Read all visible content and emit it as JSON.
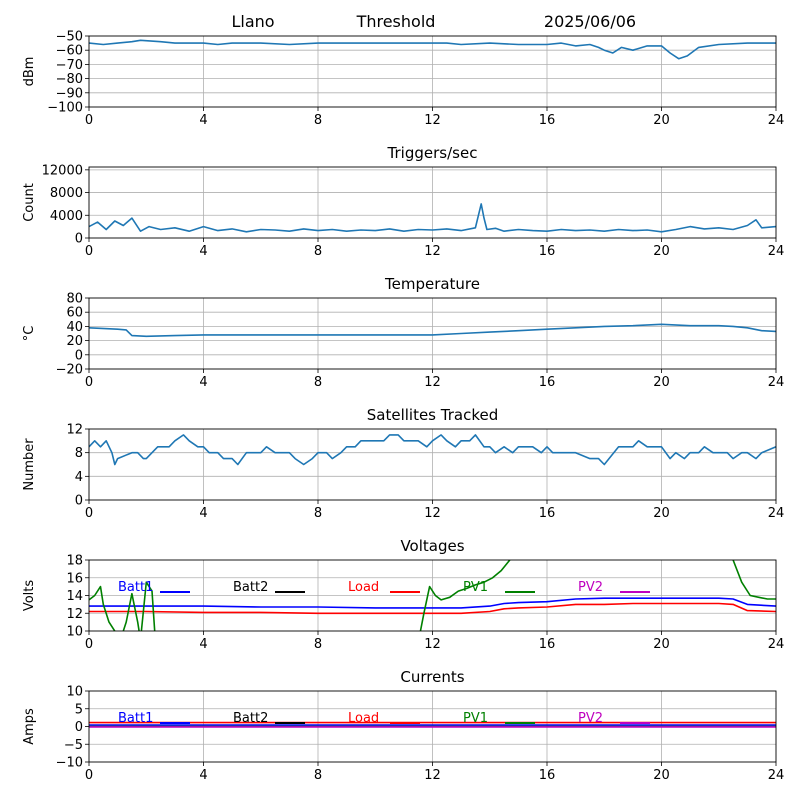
{
  "header": {
    "station": "Llano",
    "mode": "Threshold",
    "date": "2025/06/06"
  },
  "chart_data": [
    {
      "type": "line",
      "title": "",
      "ylabel": "dBm",
      "xlim": [
        0,
        24
      ],
      "ylim": [
        -100,
        -50
      ],
      "xticks": [
        0,
        4,
        8,
        12,
        16,
        20,
        24
      ],
      "yticks": [
        -100,
        -90,
        -80,
        -70,
        -60,
        -50
      ],
      "grid": true,
      "series": [
        {
          "color": "#1f77b4",
          "x": [
            0,
            0.5,
            1,
            1.5,
            1.8,
            2.5,
            3,
            4,
            4.5,
            5,
            6,
            7,
            8,
            9,
            10,
            11,
            12,
            12.5,
            13,
            14,
            15,
            16,
            16.5,
            17,
            17.5,
            17.8,
            18,
            18.3,
            18.6,
            19,
            19.5,
            20,
            20.3,
            20.6,
            20.9,
            21.3,
            22,
            23,
            24
          ],
          "y": [
            -55,
            -56,
            -55,
            -54,
            -53,
            -54,
            -55,
            -55,
            -56,
            -55,
            -55,
            -56,
            -55,
            -55,
            -55,
            -55,
            -55,
            -55,
            -56,
            -55,
            -56,
            -56,
            -55,
            -57,
            -56,
            -58,
            -60,
            -62,
            -58,
            -60,
            -57,
            -57,
            -62,
            -66,
            -64,
            -58,
            -56,
            -55,
            -55
          ]
        }
      ]
    },
    {
      "type": "line",
      "title": "Triggers/sec",
      "ylabel": "Count",
      "xlim": [
        0,
        24
      ],
      "ylim": [
        0,
        12500
      ],
      "xticks": [
        0,
        4,
        8,
        12,
        16,
        20,
        24
      ],
      "yticks": [
        0,
        4000,
        8000,
        12000
      ],
      "grid": true,
      "series": [
        {
          "color": "#1f77b4",
          "x": [
            0,
            0.3,
            0.6,
            0.9,
            1.2,
            1.5,
            1.8,
            2.1,
            2.5,
            3,
            3.5,
            4,
            4.5,
            5,
            5.5,
            6,
            6.5,
            7,
            7.5,
            8,
            8.5,
            9,
            9.5,
            10,
            10.5,
            11,
            11.5,
            12,
            12.5,
            13,
            13.5,
            13.7,
            13.8,
            13.9,
            14.2,
            14.5,
            15,
            15.5,
            16,
            16.5,
            17,
            17.5,
            18,
            18.5,
            19,
            19.5,
            20,
            20.5,
            21,
            21.5,
            22,
            22.5,
            23,
            23.3,
            23.5,
            24
          ],
          "y": [
            2000,
            2800,
            1500,
            3000,
            2200,
            3500,
            1200,
            2000,
            1500,
            1800,
            1200,
            2000,
            1300,
            1600,
            1100,
            1500,
            1400,
            1200,
            1600,
            1300,
            1500,
            1200,
            1400,
            1300,
            1600,
            1200,
            1500,
            1400,
            1600,
            1300,
            1800,
            6000,
            3500,
            1500,
            1700,
            1200,
            1500,
            1300,
            1200,
            1500,
            1300,
            1400,
            1200,
            1500,
            1300,
            1400,
            1100,
            1500,
            2000,
            1600,
            1800,
            1500,
            2200,
            3200,
            1800,
            2000
          ]
        }
      ]
    },
    {
      "type": "line",
      "title": "Temperature",
      "ylabel": "°C",
      "xlim": [
        0,
        24
      ],
      "ylim": [
        -20,
        80
      ],
      "xticks": [
        0,
        4,
        8,
        12,
        16,
        20,
        24
      ],
      "yticks": [
        -20,
        0,
        20,
        40,
        60,
        80
      ],
      "grid": true,
      "series": [
        {
          "color": "#1f77b4",
          "x": [
            0,
            1,
            1.3,
            1.5,
            2,
            3,
            4,
            5,
            6,
            7,
            8,
            9,
            10,
            11,
            12,
            13,
            14,
            15,
            16,
            17,
            18,
            19,
            20,
            21,
            22,
            22.5,
            23,
            23.5,
            24
          ],
          "y": [
            38,
            36,
            35,
            27,
            26,
            27,
            28,
            28,
            28,
            28,
            28,
            28,
            28,
            28,
            28,
            30,
            32,
            34,
            36,
            38,
            40,
            41,
            43,
            41,
            41,
            40,
            38,
            34,
            33
          ]
        }
      ]
    },
    {
      "type": "line",
      "title": "Satellites Tracked",
      "ylabel": "Number",
      "xlim": [
        0,
        24
      ],
      "ylim": [
        0,
        12
      ],
      "xticks": [
        0,
        4,
        8,
        12,
        16,
        20,
        24
      ],
      "yticks": [
        0,
        4,
        8,
        12
      ],
      "grid": true,
      "series": [
        {
          "color": "#1f77b4",
          "x": [
            0,
            0.2,
            0.4,
            0.6,
            0.8,
            0.9,
            1,
            1.5,
            1.7,
            1.9,
            2,
            2.4,
            2.8,
            3,
            3.3,
            3.5,
            3.8,
            4,
            4.2,
            4.5,
            4.7,
            5,
            5.2,
            5.5,
            5.8,
            6,
            6.2,
            6.5,
            7,
            7.2,
            7.5,
            7.8,
            8,
            8.3,
            8.5,
            8.8,
            9,
            9.3,
            9.5,
            9.8,
            10,
            10.3,
            10.5,
            10.8,
            11,
            11.3,
            11.5,
            11.8,
            12,
            12.3,
            12.5,
            12.8,
            13,
            13.3,
            13.5,
            13.8,
            14,
            14.2,
            14.5,
            14.8,
            15,
            15.5,
            15.8,
            16,
            16.2,
            16.5,
            17,
            17.5,
            17.8,
            18,
            18.5,
            19,
            19.2,
            19.5,
            20,
            20.3,
            20.5,
            20.8,
            21,
            21.3,
            21.5,
            21.8,
            22,
            22.3,
            22.5,
            22.8,
            23,
            23.3,
            23.5,
            24
          ],
          "y": [
            9,
            10,
            9,
            10,
            8,
            6,
            7,
            8,
            8,
            7,
            7,
            9,
            9,
            10,
            11,
            10,
            9,
            9,
            8,
            8,
            7,
            7,
            6,
            8,
            8,
            8,
            9,
            8,
            8,
            7,
            6,
            7,
            8,
            8,
            7,
            8,
            9,
            9,
            10,
            10,
            10,
            10,
            11,
            11,
            10,
            10,
            10,
            9,
            10,
            11,
            10,
            9,
            10,
            10,
            11,
            9,
            9,
            8,
            9,
            8,
            9,
            9,
            8,
            9,
            8,
            8,
            8,
            7,
            7,
            6,
            9,
            9,
            10,
            9,
            9,
            7,
            8,
            7,
            8,
            8,
            9,
            8,
            8,
            8,
            7,
            8,
            8,
            7,
            8,
            9
          ]
        }
      ]
    },
    {
      "type": "line",
      "title": "Voltages",
      "ylabel": "Volts",
      "xlim": [
        0,
        24
      ],
      "ylim": [
        10,
        18
      ],
      "xticks": [
        0,
        4,
        8,
        12,
        16,
        20,
        24
      ],
      "yticks": [
        10,
        12,
        14,
        16,
        18
      ],
      "grid": true,
      "legend_placement": "upper-center",
      "series": [
        {
          "name": "Batt1",
          "color": "#0000ff",
          "x": [
            0,
            2,
            4,
            6,
            8,
            10,
            12,
            13,
            14,
            14.5,
            15,
            16,
            17,
            18,
            19,
            20,
            21,
            22,
            22.5,
            23,
            24
          ],
          "y": [
            12.8,
            12.8,
            12.8,
            12.7,
            12.7,
            12.6,
            12.6,
            12.6,
            12.8,
            13.1,
            13.2,
            13.3,
            13.6,
            13.7,
            13.7,
            13.7,
            13.7,
            13.7,
            13.6,
            13.0,
            12.8
          ]
        },
        {
          "name": "Batt2",
          "color": "#000000",
          "x": [],
          "y": []
        },
        {
          "name": "Load",
          "color": "#ff0000",
          "x": [
            0,
            2,
            4,
            6,
            8,
            10,
            12,
            13,
            14,
            14.5,
            15,
            16,
            17,
            18,
            19,
            20,
            21,
            22,
            22.5,
            23,
            24
          ],
          "y": [
            12.2,
            12.2,
            12.1,
            12.1,
            12.0,
            12.0,
            12.0,
            12.0,
            12.2,
            12.5,
            12.6,
            12.7,
            13.0,
            13.0,
            13.1,
            13.1,
            13.1,
            13.1,
            13.0,
            12.3,
            12.2
          ]
        },
        {
          "name": "PV1",
          "color": "#008000",
          "x": [
            0,
            0.2,
            0.4,
            0.5,
            0.7,
            0.8,
            1,
            1.1,
            1.2,
            1.3,
            1.5,
            1.7,
            1.8,
            2.0,
            2.2,
            2.4
          ],
          "y": [
            13.5,
            14.0,
            15.0,
            13.0,
            11.0,
            10.5,
            9.5,
            9.2,
            10.0,
            11.0,
            14.2,
            11.0,
            9.0,
            15.5,
            14.5,
            5.0
          ]
        },
        {
          "name": "PV2",
          "color": "#bf00bf",
          "x": [],
          "y": []
        }
      ],
      "extra_segments": [
        {
          "color": "#008000",
          "x": [
            11.4,
            11.7,
            11.9,
            12.1,
            12.3,
            12.6,
            12.9,
            13.2,
            13.5,
            13.8,
            14.1,
            14.4,
            14.7,
            15.0
          ],
          "y": [
            7.0,
            12.0,
            15.0,
            14.0,
            13.5,
            13.8,
            14.5,
            14.8,
            15.2,
            15.5,
            16.0,
            16.8,
            18.0,
            20.0
          ]
        },
        {
          "color": "#008000",
          "x": [
            22.2,
            22.5,
            22.8,
            23.1,
            23.4,
            23.7,
            24
          ],
          "y": [
            20.0,
            18.0,
            15.5,
            14.0,
            13.8,
            13.6,
            13.6
          ]
        }
      ]
    },
    {
      "type": "line",
      "title": "Currents",
      "ylabel": "Amps",
      "xlim": [
        0,
        24
      ],
      "ylim": [
        -10,
        10
      ],
      "xticks": [
        0,
        4,
        8,
        12,
        16,
        20,
        24
      ],
      "yticks": [
        -10,
        -5,
        0,
        5,
        10
      ],
      "grid": true,
      "legend_placement": "upper-center",
      "series": [
        {
          "name": "Batt1",
          "color": "#0000ff",
          "x": [
            0,
            24
          ],
          "y": [
            0.4,
            0.4
          ]
        },
        {
          "name": "Batt2",
          "color": "#000000",
          "x": [],
          "y": []
        },
        {
          "name": "Load",
          "color": "#ff0000",
          "x": [
            0,
            24
          ],
          "y": [
            1.1,
            1.1
          ]
        },
        {
          "name": "PV1",
          "color": "#008000",
          "x": [
            0,
            24
          ],
          "y": [
            0.0,
            0.0
          ]
        },
        {
          "name": "PV2",
          "color": "#bf00bf",
          "x": [
            0,
            24
          ],
          "y": [
            -0.1,
            -0.1
          ]
        }
      ]
    }
  ]
}
